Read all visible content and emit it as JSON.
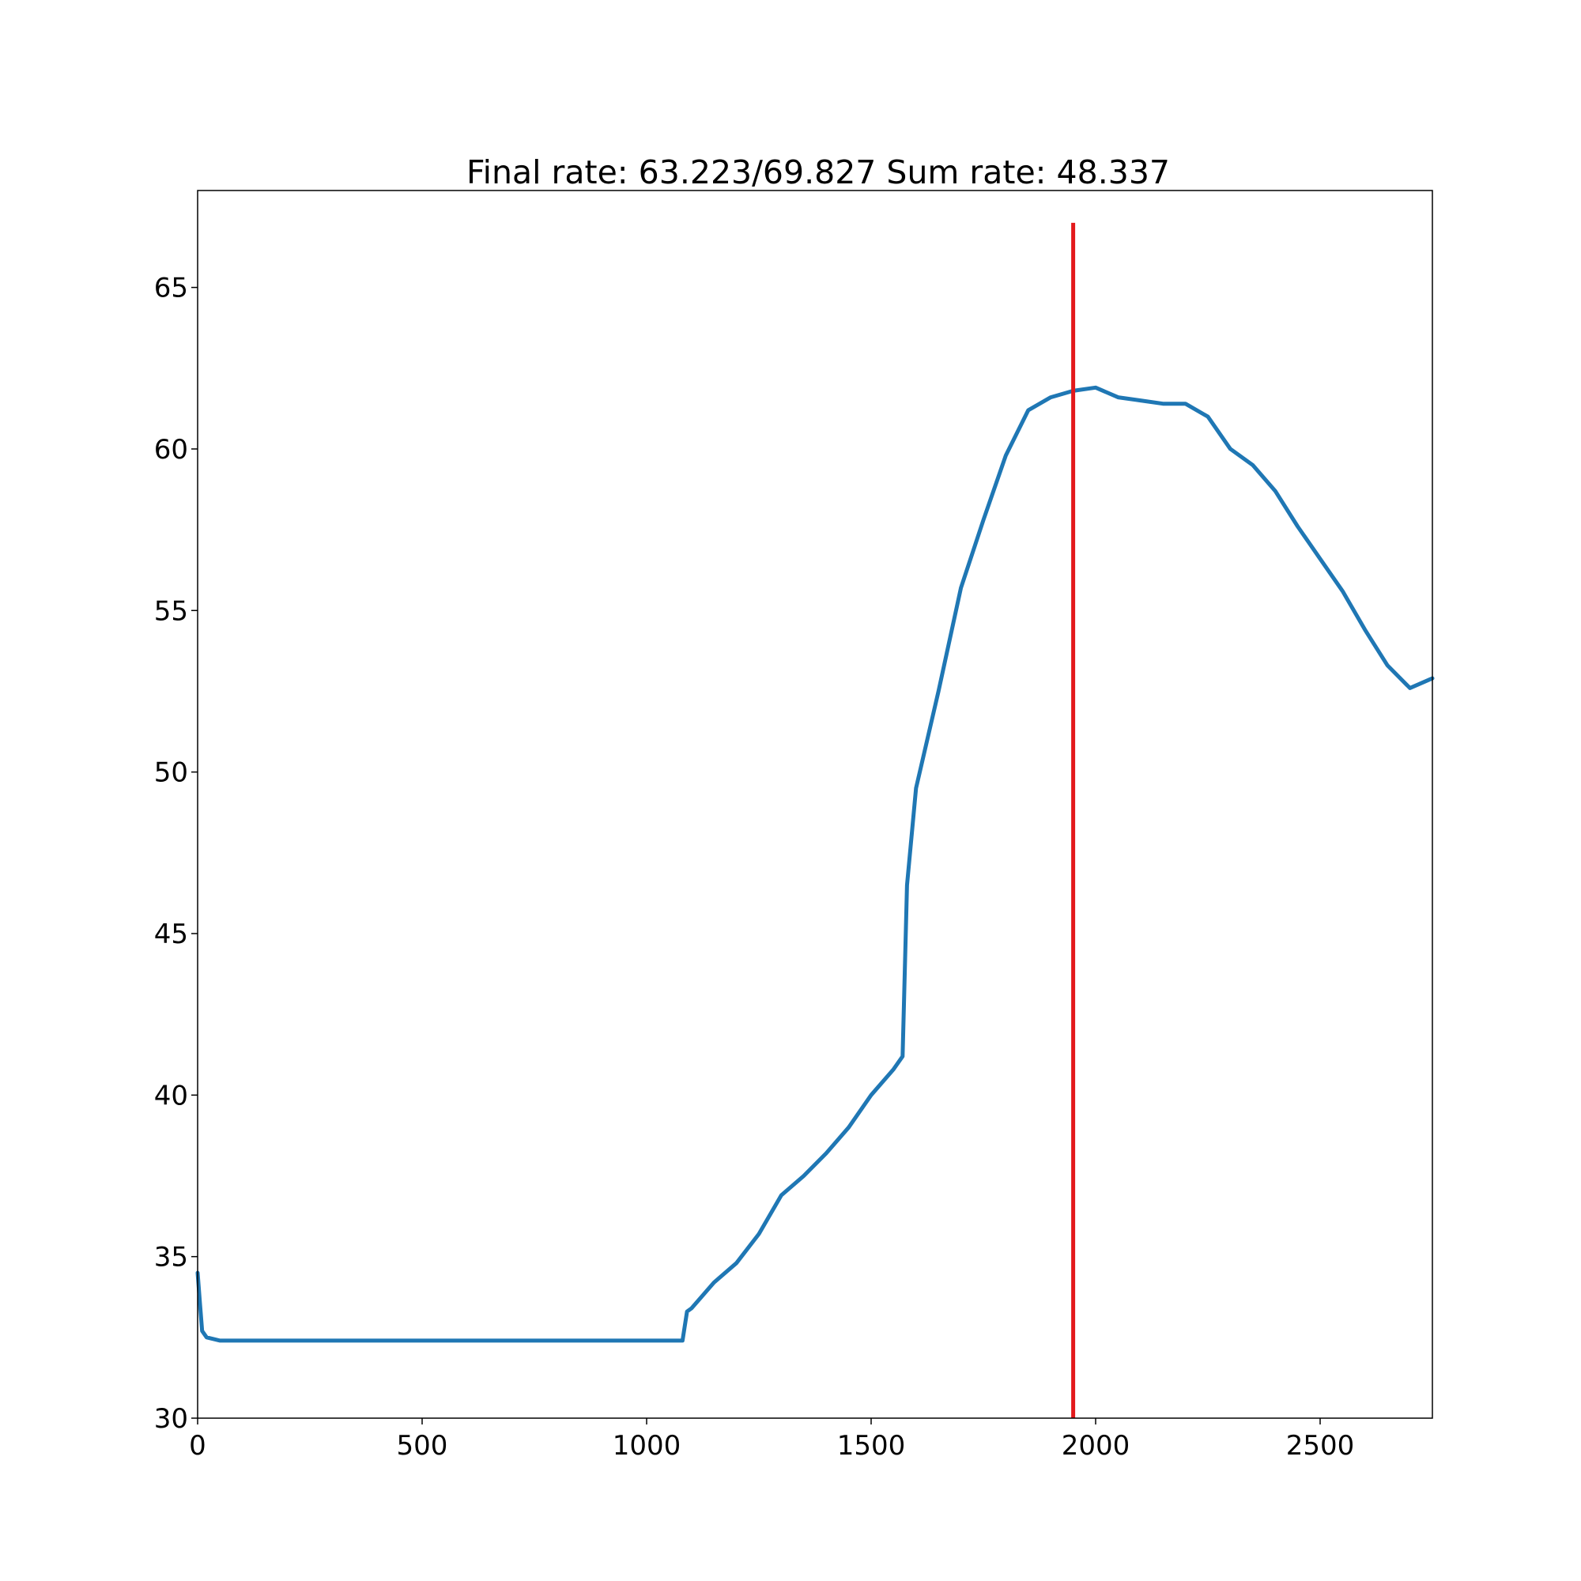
{
  "chart_data": {
    "type": "line",
    "title": "Final rate: 63.223/69.827  Sum rate: 48.337",
    "xlabel": "",
    "ylabel": "",
    "xlim": [
      0,
      2750
    ],
    "ylim": [
      30,
      68
    ],
    "x_ticks": [
      0,
      500,
      1000,
      1500,
      2000,
      2500
    ],
    "y_ticks": [
      30,
      35,
      40,
      45,
      50,
      55,
      60,
      65
    ],
    "grid": false,
    "legend": "none",
    "series": [
      {
        "color": "#1f77b4",
        "x": [
          0,
          5,
          10,
          20,
          50,
          100,
          200,
          300,
          400,
          500,
          600,
          700,
          800,
          900,
          1000,
          1080,
          1090,
          1100,
          1150,
          1200,
          1250,
          1300,
          1350,
          1400,
          1450,
          1500,
          1550,
          1570,
          1580,
          1600,
          1650,
          1700,
          1750,
          1800,
          1850,
          1900,
          1950,
          2000,
          2050,
          2100,
          2150,
          2200,
          2250,
          2300,
          2350,
          2400,
          2450,
          2500,
          2550,
          2600,
          2650,
          2700,
          2750
        ],
        "y": [
          34.5,
          33.6,
          32.7,
          32.5,
          32.4,
          32.4,
          32.4,
          32.4,
          32.4,
          32.4,
          32.4,
          32.4,
          32.4,
          32.4,
          32.4,
          32.4,
          33.3,
          33.4,
          34.2,
          34.8,
          35.7,
          36.9,
          37.5,
          38.2,
          39.0,
          40.0,
          40.8,
          41.2,
          46.5,
          49.5,
          52.5,
          55.7,
          57.8,
          59.8,
          61.2,
          61.6,
          61.8,
          61.9,
          61.6,
          61.5,
          61.4,
          61.4,
          61.0,
          60.0,
          59.5,
          58.7,
          57.6,
          56.6,
          55.6,
          54.4,
          53.3,
          52.6,
          52.9
        ]
      }
    ],
    "vline": {
      "x": 1950,
      "y_from": 30,
      "y_to": 67,
      "color": "#e31a1c"
    }
  }
}
